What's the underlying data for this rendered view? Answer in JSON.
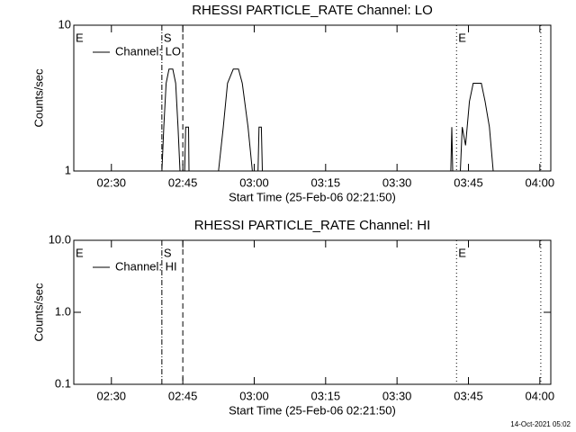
{
  "chart_data": [
    {
      "type": "line",
      "title": "RHESSI PARTICLE_RATE Channel: LO",
      "xlabel": "Start Time (25-Feb-06 02:21:50)",
      "ylabel": "Counts/sec",
      "log_y": true,
      "xlim": [
        142.1,
        242.3
      ],
      "ylim": [
        1,
        10
      ],
      "xticks": [
        {
          "value": 150,
          "label": "02:30"
        },
        {
          "value": 165,
          "label": "02:45"
        },
        {
          "value": 180,
          "label": "03:00"
        },
        {
          "value": 195,
          "label": "03:15"
        },
        {
          "value": 210,
          "label": "03:30"
        },
        {
          "value": 225,
          "label": "03:45"
        },
        {
          "value": 240,
          "label": "04:00"
        }
      ],
      "yticks": [
        1,
        10
      ],
      "legend": "upper left",
      "series": [
        {
          "name": "Channel: LO",
          "color": "#000000",
          "x": [
            160.6,
            161.0,
            161.5,
            162.1,
            162.9,
            163.5,
            164.0,
            164.4,
            null,
            165.4,
            165.6,
            166.2,
            166.3,
            null,
            172.5,
            173.5,
            174.4,
            175.6,
            176.7,
            177.5,
            178.7,
            179.6,
            null,
            180.8,
            181.0,
            181.5,
            181.7,
            null,
            221.3,
            221.5,
            221.7,
            null,
            223.3,
            223.7,
            224.4,
            225.2,
            226.0,
            226.7,
            227.7,
            228.5,
            229.4,
            230.2
          ],
          "values": [
            1,
            2,
            4,
            5,
            5,
            4,
            2,
            1,
            null,
            1,
            2,
            2,
            1,
            null,
            1,
            2,
            4,
            5,
            5,
            4,
            2,
            1,
            null,
            1,
            2,
            2,
            1,
            null,
            1,
            2,
            1,
            null,
            1,
            2,
            1.5,
            3,
            4,
            4,
            4,
            3,
            2,
            1
          ]
        }
      ],
      "vlines": [
        {
          "x": 160.6,
          "style": "dashdot"
        },
        {
          "x": 165.0,
          "style": "dashed"
        },
        {
          "x": 222.5,
          "style": "dotted"
        },
        {
          "x": 240.2,
          "style": "dotted"
        }
      ],
      "annotations": [
        {
          "x": 142.1,
          "text": "E"
        },
        {
          "x": 160.6,
          "text": "S"
        },
        {
          "x": 222.5,
          "text": "E"
        }
      ]
    },
    {
      "type": "line",
      "title": "RHESSI PARTICLE_RATE Channel: HI",
      "xlabel": "Start Time (25-Feb-06 02:21:50)",
      "ylabel": "Counts/sec",
      "log_y": true,
      "xlim": [
        142.1,
        242.3
      ],
      "ylim": [
        0.1,
        10
      ],
      "xticks": [
        {
          "value": 150,
          "label": "02:30"
        },
        {
          "value": 165,
          "label": "02:45"
        },
        {
          "value": 180,
          "label": "03:00"
        },
        {
          "value": 195,
          "label": "03:15"
        },
        {
          "value": 210,
          "label": "03:30"
        },
        {
          "value": 225,
          "label": "03:45"
        },
        {
          "value": 240,
          "label": "04:00"
        }
      ],
      "yticks": [
        0.1,
        {
          "value": 1,
          "label": "1.0"
        },
        {
          "value": 10,
          "label": "10.0"
        }
      ],
      "legend": "upper left",
      "series": [
        {
          "name": "Channel: HI",
          "color": "#000000",
          "x": [],
          "values": []
        }
      ],
      "vlines": [
        {
          "x": 160.6,
          "style": "dashdot"
        },
        {
          "x": 165.0,
          "style": "dashed"
        },
        {
          "x": 222.5,
          "style": "dotted"
        },
        {
          "x": 240.2,
          "style": "dotted"
        }
      ],
      "annotations": [
        {
          "x": 142.1,
          "text": "E"
        },
        {
          "x": 160.6,
          "text": "S"
        },
        {
          "x": 222.5,
          "text": "E"
        }
      ]
    }
  ],
  "footer": "14-Oct-2021 05:02"
}
